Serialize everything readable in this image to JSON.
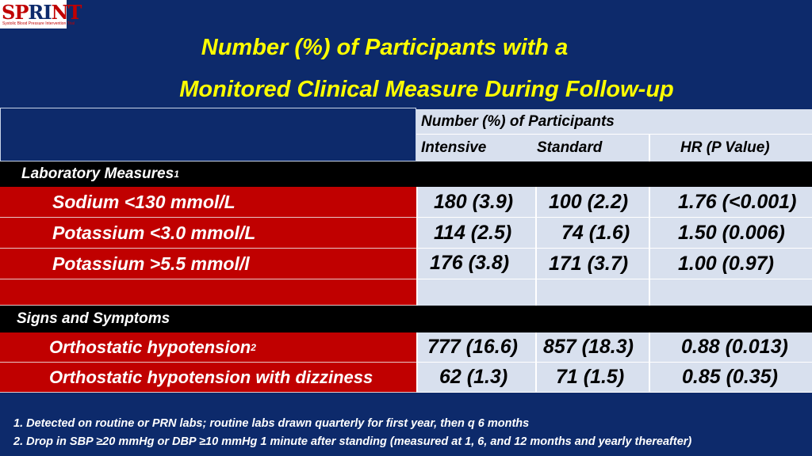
{
  "logo": {
    "word": "SPRINT",
    "subtitle": "Systolic Blood Pressure Intervention Trial"
  },
  "title": {
    "line1": "Number (%) of Participants with a",
    "line2": "Monitored Clinical Measure During Follow-up"
  },
  "header": {
    "group": "Number (%) of Participants",
    "intensive": "Intensive",
    "standard": "Standard",
    "hr": "HR (P Value)"
  },
  "sections": [
    {
      "label": "Laboratory Measures",
      "sup": "1",
      "rows": [
        {
          "label": "Sodium <130 mmol/L",
          "sup": "",
          "intensive": "180 (3.9)",
          "standard": "100 (2.2)",
          "hr": "1.76 (<0.001)"
        },
        {
          "label": "Potassium <3.0 mmol/L",
          "sup": "",
          "intensive": "114 (2.5)",
          "standard": "74 (1.6)",
          "hr": "1.50 (0.006)"
        },
        {
          "label": "Potassium >5.5 mmol/l",
          "sup": "",
          "intensive": "176 (3.8)",
          "standard": "171 (3.7)",
          "hr": "1.00 (0.97)"
        }
      ]
    },
    {
      "label": "Signs and Symptoms",
      "sup": "",
      "rows": [
        {
          "label": "Orthostatic hypotension",
          "sup": "2",
          "intensive": "777 (16.6)",
          "standard": "857 (18.3)",
          "hr": "0.88 (0.013)"
        },
        {
          "label": "Orthostatic hypotension with dizziness",
          "sup": "",
          "intensive": "62 (1.3)",
          "standard": "71 (1.5)",
          "hr": "0.85 (0.35)"
        }
      ]
    }
  ],
  "footnotes": [
    "1. Detected on routine or PRN labs; routine labs drawn quarterly for first year, then q 6 months",
    "2. Drop in SBP ≥20 mmHg or DBP ≥10 mmHg 1 minute after standing (measured at 1, 6, and 12 months and yearly thereafter)"
  ]
}
